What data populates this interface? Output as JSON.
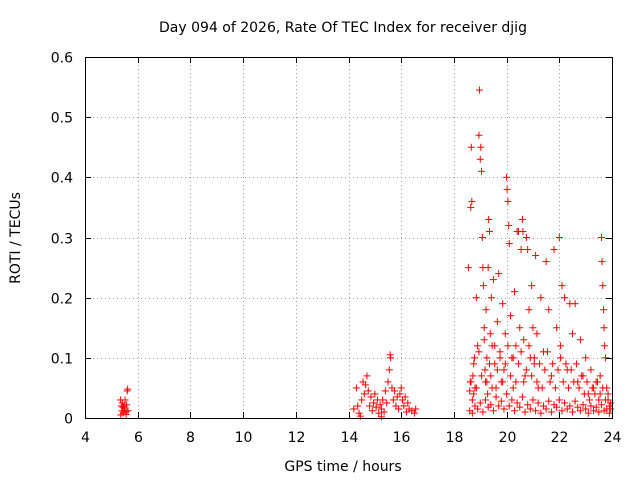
{
  "chart_data": {
    "type": "scatter",
    "title": "Day 094 of 2026, Rate Of TEC Index for receiver djig",
    "xlabel": "GPS time / hours",
    "ylabel": "ROTI / TECUs",
    "xlim": [
      4,
      24
    ],
    "ylim": [
      0,
      0.6
    ],
    "xticks": [
      4,
      6,
      8,
      10,
      12,
      14,
      16,
      18,
      20,
      22,
      24
    ],
    "yticks": [
      0,
      0.1,
      0.2,
      0.3,
      0.4,
      0.5,
      0.6
    ],
    "xtick_labels": [
      "4",
      "6",
      "8",
      "10",
      "12",
      "14",
      "16",
      "18",
      "20",
      "22",
      "24"
    ],
    "ytick_labels": [
      "0",
      "0.1",
      "0.2",
      "0.3",
      "0.4",
      "0.5",
      "0.6"
    ],
    "grid": true,
    "marker": "+",
    "color": "#ff0000",
    "series": [
      {
        "name": "ROTI",
        "points": [
          [
            5.35,
            0.03
          ],
          [
            5.38,
            0.02
          ],
          [
            5.4,
            0.012
          ],
          [
            5.42,
            0.025
          ],
          [
            5.45,
            0.008
          ],
          [
            5.48,
            0.02
          ],
          [
            5.5,
            0.015
          ],
          [
            5.52,
            0.03
          ],
          [
            5.55,
            0.01
          ],
          [
            5.58,
            0.022
          ],
          [
            5.6,
            0.045
          ],
          [
            5.62,
            0.048
          ],
          [
            5.63,
            0.012
          ],
          [
            5.36,
            0.005
          ],
          [
            5.44,
            0.018
          ],
          [
            5.56,
            0.006
          ],
          [
            14.2,
            0.015
          ],
          [
            14.3,
            0.05
          ],
          [
            14.35,
            0.02
          ],
          [
            14.4,
            0.008
          ],
          [
            14.5,
            0.03
          ],
          [
            14.55,
            0.06
          ],
          [
            14.6,
            0.04
          ],
          [
            14.65,
            0.055
          ],
          [
            14.7,
            0.07
          ],
          [
            14.75,
            0.045
          ],
          [
            14.8,
            0.02
          ],
          [
            14.85,
            0.035
          ],
          [
            14.9,
            0.012
          ],
          [
            14.95,
            0.025
          ],
          [
            15.0,
            0.04
          ],
          [
            15.05,
            0.018
          ],
          [
            15.1,
            0.03
          ],
          [
            15.15,
            0.008
          ],
          [
            15.2,
            0.022
          ],
          [
            15.25,
            0.015
          ],
          [
            15.3,
            0.03
          ],
          [
            15.35,
            0.01
          ],
          [
            15.4,
            0.045
          ],
          [
            15.45,
            0.025
          ],
          [
            15.5,
            0.06
          ],
          [
            15.55,
            0.08
          ],
          [
            15.58,
            0.105
          ],
          [
            15.6,
            0.1
          ],
          [
            15.65,
            0.05
          ],
          [
            15.7,
            0.03
          ],
          [
            15.75,
            0.045
          ],
          [
            15.8,
            0.02
          ],
          [
            15.85,
            0.035
          ],
          [
            15.9,
            0.015
          ],
          [
            15.95,
            0.04
          ],
          [
            16.0,
            0.05
          ],
          [
            16.05,
            0.03
          ],
          [
            16.1,
            0.02
          ],
          [
            16.15,
            0.035
          ],
          [
            16.2,
            0.01
          ],
          [
            16.25,
            0.025
          ],
          [
            16.3,
            0.015
          ],
          [
            16.4,
            0.012
          ],
          [
            16.5,
            0.008
          ],
          [
            16.55,
            0.015
          ],
          [
            14.45,
            0.003
          ],
          [
            15.25,
            0.002
          ],
          [
            18.55,
            0.25
          ],
          [
            18.6,
            0.045
          ],
          [
            18.62,
            0.06
          ],
          [
            18.64,
            0.35
          ],
          [
            18.66,
            0.45
          ],
          [
            18.68,
            0.36
          ],
          [
            18.7,
            0.03
          ],
          [
            18.72,
            0.07
          ],
          [
            18.75,
            0.04
          ],
          [
            18.78,
            0.1
          ],
          [
            18.8,
            0.05
          ],
          [
            18.85,
            0.2
          ],
          [
            18.9,
            0.12
          ],
          [
            18.95,
            0.47
          ],
          [
            18.97,
            0.545
          ],
          [
            19.0,
            0.43
          ],
          [
            19.02,
            0.45
          ],
          [
            19.05,
            0.41
          ],
          [
            19.08,
            0.3
          ],
          [
            19.1,
            0.25
          ],
          [
            19.12,
            0.22
          ],
          [
            19.15,
            0.15
          ],
          [
            19.18,
            0.08
          ],
          [
            19.2,
            0.06
          ],
          [
            19.22,
            0.18
          ],
          [
            19.25,
            0.1
          ],
          [
            19.28,
            0.04
          ],
          [
            19.3,
            0.25
          ],
          [
            19.32,
            0.33
          ],
          [
            19.35,
            0.31
          ],
          [
            19.38,
            0.14
          ],
          [
            19.4,
            0.07
          ],
          [
            19.42,
            0.2
          ],
          [
            19.45,
            0.12
          ],
          [
            19.5,
            0.23
          ],
          [
            19.55,
            0.09
          ],
          [
            19.6,
            0.05
          ],
          [
            19.65,
            0.16
          ],
          [
            19.7,
            0.24
          ],
          [
            19.75,
            0.11
          ],
          [
            19.8,
            0.06
          ],
          [
            19.85,
            0.19
          ],
          [
            19.9,
            0.08
          ],
          [
            19.95,
            0.14
          ],
          [
            20.0,
            0.4
          ],
          [
            20.02,
            0.38
          ],
          [
            20.05,
            0.36
          ],
          [
            20.08,
            0.32
          ],
          [
            20.1,
            0.29
          ],
          [
            20.15,
            0.17
          ],
          [
            20.2,
            0.1
          ],
          [
            20.25,
            0.05
          ],
          [
            20.3,
            0.21
          ],
          [
            20.35,
            0.12
          ],
          [
            20.4,
            0.31
          ],
          [
            20.45,
            0.31
          ],
          [
            20.5,
            0.15
          ],
          [
            20.55,
            0.28
          ],
          [
            20.6,
            0.33
          ],
          [
            20.62,
            0.31
          ],
          [
            20.65,
            0.13
          ],
          [
            20.7,
            0.07
          ],
          [
            20.75,
            0.3
          ],
          [
            20.8,
            0.28
          ],
          [
            20.85,
            0.18
          ],
          [
            20.9,
            0.1
          ],
          [
            20.95,
            0.22
          ],
          [
            21.0,
            0.15
          ],
          [
            21.05,
            0.09
          ],
          [
            21.1,
            0.27
          ],
          [
            21.15,
            0.14
          ],
          [
            21.2,
            0.05
          ],
          [
            21.3,
            0.2
          ],
          [
            21.4,
            0.11
          ],
          [
            21.5,
            0.26
          ],
          [
            21.6,
            0.18
          ],
          [
            21.7,
            0.07
          ],
          [
            21.8,
            0.28
          ],
          [
            21.9,
            0.15
          ],
          [
            22.0,
            0.3
          ],
          [
            22.05,
            0.12
          ],
          [
            22.1,
            0.22
          ],
          [
            22.2,
            0.2
          ],
          [
            22.3,
            0.08
          ],
          [
            22.4,
            0.19
          ],
          [
            22.5,
            0.14
          ],
          [
            22.6,
            0.19
          ],
          [
            22.7,
            0.06
          ],
          [
            22.8,
            0.13
          ],
          [
            22.9,
            0.07
          ],
          [
            23.0,
            0.1
          ],
          [
            23.1,
            0.04
          ],
          [
            23.2,
            0.08
          ],
          [
            23.3,
            0.05
          ],
          [
            23.4,
            0.06
          ],
          [
            23.5,
            0.03
          ],
          [
            23.55,
            0.07
          ],
          [
            23.6,
            0.3
          ],
          [
            23.62,
            0.26
          ],
          [
            23.65,
            0.22
          ],
          [
            23.68,
            0.18
          ],
          [
            23.7,
            0.15
          ],
          [
            23.72,
            0.12
          ],
          [
            23.75,
            0.1
          ],
          [
            23.8,
            0.05
          ],
          [
            23.85,
            0.03
          ],
          [
            23.9,
            0.02
          ],
          [
            23.95,
            0.015
          ],
          [
            18.6,
            0.012
          ],
          [
            18.7,
            0.008
          ],
          [
            18.8,
            0.02
          ],
          [
            18.9,
            0.015
          ],
          [
            19.0,
            0.025
          ],
          [
            19.1,
            0.01
          ],
          [
            19.2,
            0.03
          ],
          [
            19.3,
            0.018
          ],
          [
            19.4,
            0.022
          ],
          [
            19.5,
            0.012
          ],
          [
            19.6,
            0.035
          ],
          [
            19.7,
            0.02
          ],
          [
            19.8,
            0.028
          ],
          [
            19.9,
            0.015
          ],
          [
            20.0,
            0.04
          ],
          [
            20.1,
            0.02
          ],
          [
            20.2,
            0.03
          ],
          [
            20.3,
            0.012
          ],
          [
            20.4,
            0.025
          ],
          [
            20.5,
            0.018
          ],
          [
            20.6,
            0.035
          ],
          [
            20.7,
            0.01
          ],
          [
            20.8,
            0.022
          ],
          [
            20.9,
            0.015
          ],
          [
            21.0,
            0.03
          ],
          [
            21.1,
            0.012
          ],
          [
            21.2,
            0.025
          ],
          [
            21.3,
            0.008
          ],
          [
            21.4,
            0.02
          ],
          [
            21.5,
            0.015
          ],
          [
            21.6,
            0.028
          ],
          [
            21.7,
            0.01
          ],
          [
            21.8,
            0.022
          ],
          [
            21.9,
            0.018
          ],
          [
            22.0,
            0.03
          ],
          [
            22.1,
            0.012
          ],
          [
            22.2,
            0.025
          ],
          [
            22.3,
            0.015
          ],
          [
            22.4,
            0.02
          ],
          [
            22.5,
            0.01
          ],
          [
            22.6,
            0.028
          ],
          [
            22.7,
            0.018
          ],
          [
            22.8,
            0.012
          ],
          [
            22.9,
            0.022
          ],
          [
            23.0,
            0.015
          ],
          [
            23.1,
            0.008
          ],
          [
            23.2,
            0.02
          ],
          [
            23.3,
            0.012
          ],
          [
            23.4,
            0.018
          ],
          [
            23.5,
            0.01
          ],
          [
            23.6,
            0.022
          ],
          [
            23.7,
            0.012
          ],
          [
            23.8,
            0.015
          ],
          [
            23.9,
            0.008
          ],
          [
            18.65,
            0.06
          ],
          [
            18.75,
            0.09
          ],
          [
            18.85,
            0.05
          ],
          [
            18.95,
            0.11
          ],
          [
            19.05,
            0.07
          ],
          [
            19.15,
            0.13
          ],
          [
            19.25,
            0.06
          ],
          [
            19.35,
            0.09
          ],
          [
            19.45,
            0.05
          ],
          [
            19.55,
            0.12
          ],
          [
            19.65,
            0.08
          ],
          [
            19.75,
            0.1
          ],
          [
            19.85,
            0.06
          ],
          [
            19.95,
            0.09
          ],
          [
            20.05,
            0.12
          ],
          [
            20.15,
            0.07
          ],
          [
            20.25,
            0.1
          ],
          [
            20.35,
            0.06
          ],
          [
            20.45,
            0.09
          ],
          [
            20.55,
            0.11
          ],
          [
            20.65,
            0.06
          ],
          [
            20.75,
            0.08
          ],
          [
            20.85,
            0.12
          ],
          [
            20.95,
            0.07
          ],
          [
            21.05,
            0.1
          ],
          [
            21.15,
            0.06
          ],
          [
            21.25,
            0.09
          ],
          [
            21.35,
            0.05
          ],
          [
            21.45,
            0.08
          ],
          [
            21.55,
            0.11
          ],
          [
            21.65,
            0.06
          ],
          [
            21.75,
            0.09
          ],
          [
            21.85,
            0.05
          ],
          [
            21.95,
            0.08
          ],
          [
            22.05,
            0.1
          ],
          [
            22.15,
            0.06
          ],
          [
            22.25,
            0.09
          ],
          [
            22.35,
            0.05
          ],
          [
            22.45,
            0.08
          ],
          [
            22.55,
            0.06
          ],
          [
            22.65,
            0.09
          ],
          [
            22.75,
            0.05
          ],
          [
            22.85,
            0.07
          ],
          [
            22.95,
            0.04
          ],
          [
            23.05,
            0.06
          ],
          [
            23.15,
            0.03
          ],
          [
            23.25,
            0.05
          ],
          [
            23.35,
            0.04
          ],
          [
            23.45,
            0.06
          ],
          [
            23.55,
            0.04
          ],
          [
            23.65,
            0.05
          ],
          [
            23.75,
            0.03
          ],
          [
            23.85,
            0.04
          ],
          [
            23.95,
            0.025
          ]
        ]
      }
    ]
  }
}
